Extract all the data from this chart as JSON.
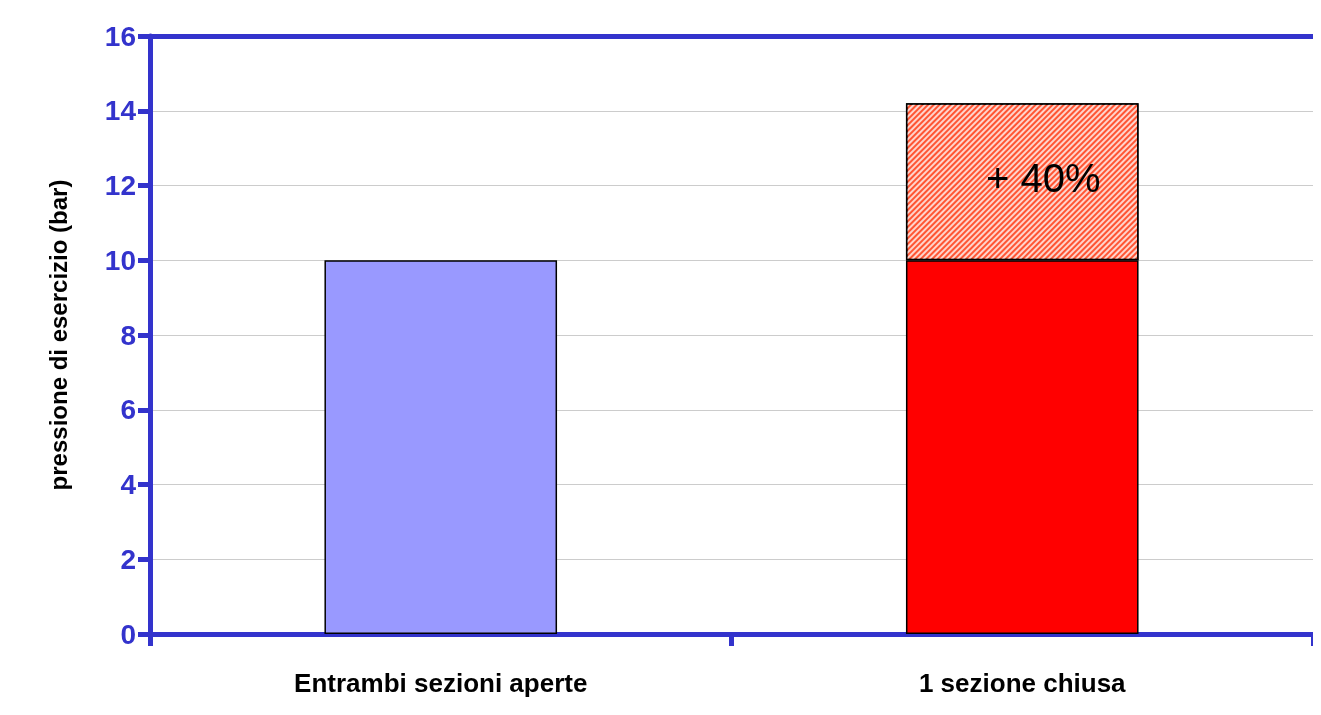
{
  "chart_data": {
    "type": "bar",
    "ylabel": "pressione di esercizio (bar)",
    "categories": [
      "Entrambi sezioni aperte",
      "1 sezione chiusa"
    ],
    "stacked": true,
    "series": [
      {
        "colors": [
          "#9999ff",
          "#ff0000"
        ],
        "values": [
          10,
          10
        ]
      },
      {
        "color": "#ff5533",
        "values": [
          null,
          4.2
        ]
      }
    ],
    "annotations": [
      "+ 40%"
    ],
    "ylim": [
      0,
      16
    ],
    "yticks": [
      0,
      2,
      4,
      6,
      8,
      10,
      12,
      14,
      16
    ],
    "grid": "y"
  }
}
